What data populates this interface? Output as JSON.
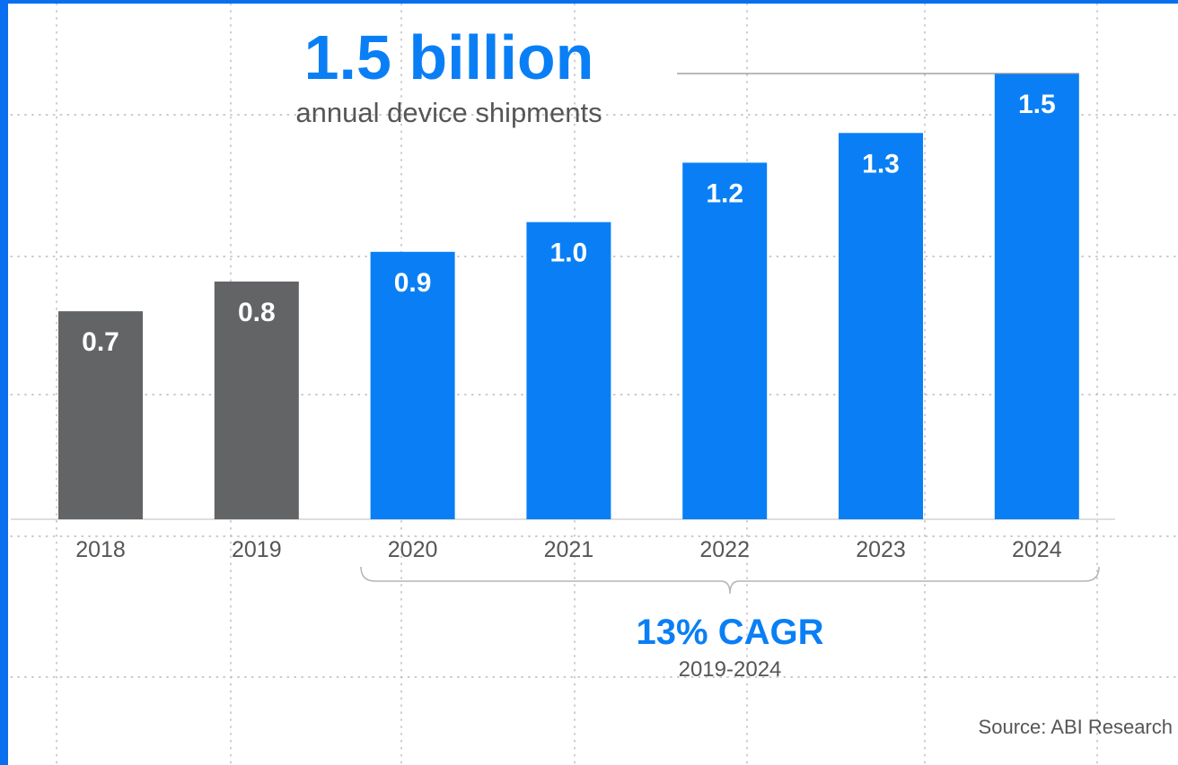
{
  "colors": {
    "frame": "#0a6ef0",
    "accent": "#0a7ff5",
    "historical_bar": "#636466",
    "text_dark": "#555658",
    "grid": "#b9babc",
    "bar_label": "#ffffff"
  },
  "headline": {
    "value": "1.5 billion",
    "subtitle": "annual device shipments"
  },
  "cagr": {
    "value": "13% CAGR",
    "period": "2019-2024"
  },
  "source": "Source: ABI Research",
  "chart_data": {
    "type": "bar",
    "title": "1.5 billion",
    "subtitle": "annual device shipments",
    "xlabel": "",
    "ylabel": "",
    "categories": [
      "2018",
      "2019",
      "2020",
      "2021",
      "2022",
      "2023",
      "2024"
    ],
    "values": [
      0.7,
      0.8,
      0.9,
      1.0,
      1.2,
      1.3,
      1.5
    ],
    "value_labels": [
      "0.7",
      "0.8",
      "0.9",
      "1.0",
      "1.2",
      "1.3",
      "1.5"
    ],
    "bar_colors": [
      "#636466",
      "#636466",
      "#0a7ff5",
      "#0a7ff5",
      "#0a7ff5",
      "#0a7ff5",
      "#0a7ff5"
    ],
    "ylim": [
      0,
      1.5
    ],
    "grid": "dotted",
    "legend": "none",
    "annotation": {
      "text": "13% CAGR",
      "subtext": "2019-2024",
      "span": [
        "2020",
        "2024"
      ]
    }
  }
}
